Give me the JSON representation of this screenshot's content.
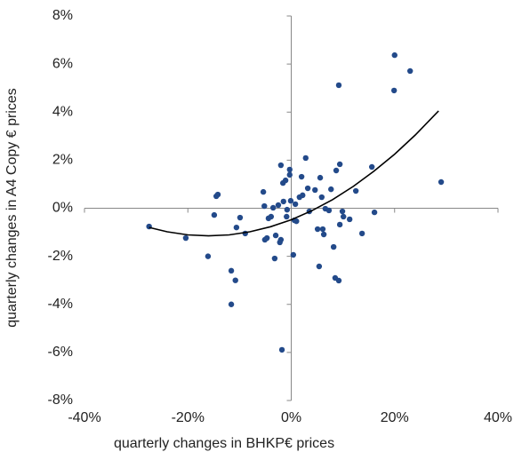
{
  "chart_data": {
    "type": "scatter",
    "xlabel": "quarterly changes in BHKP€ prices",
    "ylabel": "quarterly changes in A4 Copy € prices",
    "xlim": [
      -40,
      40
    ],
    "ylim": [
      -8,
      8
    ],
    "xticks": [
      {
        "value": -40,
        "label": "-40%"
      },
      {
        "value": -20,
        "label": "-20%"
      },
      {
        "value": 0,
        "label": "0%"
      },
      {
        "value": 20,
        "label": "20%"
      },
      {
        "value": 40,
        "label": "40%"
      }
    ],
    "yticks": [
      {
        "value": -8,
        "label": "-8%"
      },
      {
        "value": -6,
        "label": "-6%"
      },
      {
        "value": -4,
        "label": "-4%"
      },
      {
        "value": -2,
        "label": "-2%"
      },
      {
        "value": 0,
        "label": "0%"
      },
      {
        "value": 2,
        "label": "2%"
      },
      {
        "value": 4,
        "label": "4%"
      },
      {
        "value": 6,
        "label": "6%"
      },
      {
        "value": 8,
        "label": "8%"
      }
    ],
    "color": "#234a8a",
    "x": [
      -27.5,
      -20.4,
      -16.1,
      -14.9,
      -14.5,
      -14.2,
      -11.6,
      -11.6,
      -10.8,
      -10.6,
      -9.9,
      -8.9,
      -5.4,
      -5.2,
      -5.1,
      -4.7,
      -4.4,
      -3.9,
      -3.5,
      -3.2,
      -3.0,
      -2.5,
      -2.2,
      -2.0,
      -2.0,
      -1.8,
      -1.6,
      -1.5,
      -1.1,
      -0.9,
      -0.8,
      -0.3,
      -0.3,
      -0.1,
      0.4,
      0.6,
      0.8,
      1.0,
      1.6,
      2.0,
      2.2,
      2.8,
      3.2,
      3.5,
      4.6,
      5.1,
      5.4,
      5.6,
      5.9,
      6.1,
      6.3,
      6.6,
      7.3,
      7.7,
      8.2,
      8.5,
      8.7,
      9.2,
      9.2,
      9.4,
      9.4,
      9.9,
      10.1,
      11.3,
      12.5,
      13.7,
      15.6,
      16.1,
      19.9,
      20.0,
      23.0,
      29.0
    ],
    "values": [
      -0.76,
      -1.24,
      -2.0,
      -0.28,
      0.5,
      0.57,
      -4.0,
      -2.6,
      -3.0,
      -0.8,
      -0.39,
      -1.05,
      0.68,
      0.09,
      -1.31,
      -1.24,
      -0.42,
      -0.35,
      0.02,
      -2.09,
      -1.13,
      0.13,
      -1.42,
      -1.31,
      1.79,
      -5.89,
      1.05,
      0.28,
      1.16,
      -0.35,
      -0.06,
      1.61,
      1.39,
      0.31,
      -1.94,
      -0.5,
      0.17,
      -0.54,
      0.46,
      1.31,
      0.54,
      2.09,
      0.83,
      -0.13,
      0.76,
      -0.87,
      -2.42,
      1.27,
      0.46,
      -0.87,
      -1.09,
      -0.02,
      -0.09,
      0.79,
      -1.61,
      -2.9,
      1.57,
      -3.01,
      5.12,
      1.83,
      -0.68,
      -0.13,
      -0.35,
      -0.46,
      0.72,
      -1.05,
      1.72,
      -0.17,
      4.9,
      6.37,
      5.71,
      1.09
    ],
    "trendline": {
      "color": "#000000",
      "x": [
        -27.5,
        -24,
        -20,
        -16,
        -12,
        -8,
        -4,
        0,
        4,
        8,
        12,
        16,
        20,
        24,
        28.5
      ],
      "values": [
        -0.8,
        -0.98,
        -1.11,
        -1.15,
        -1.11,
        -0.98,
        -0.77,
        -0.48,
        -0.1,
        0.36,
        0.91,
        1.54,
        2.25,
        3.05,
        4.05
      ]
    }
  }
}
